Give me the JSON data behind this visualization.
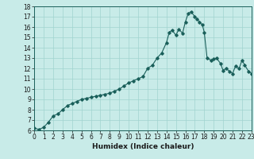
{
  "xlabel": "Humidex (Indice chaleur)",
  "ylabel": "",
  "background_color": "#c8ebe8",
  "line_color": "#1a5f5a",
  "grid_color": "#a0d4cf",
  "xlim": [
    0,
    23
  ],
  "ylim": [
    6,
    18
  ],
  "yticks": [
    6,
    7,
    8,
    9,
    10,
    11,
    12,
    13,
    14,
    15,
    16,
    17,
    18
  ],
  "xticks": [
    0,
    1,
    2,
    3,
    4,
    5,
    6,
    7,
    8,
    9,
    10,
    11,
    12,
    13,
    14,
    15,
    16,
    17,
    18,
    19,
    20,
    21,
    22,
    23
  ],
  "x": [
    0,
    0.5,
    1,
    1.5,
    2,
    2.5,
    3,
    3.5,
    4,
    4.5,
    5,
    5.5,
    6,
    6.5,
    7,
    7.5,
    8,
    8.5,
    9,
    9.5,
    10,
    10.5,
    11,
    11.5,
    12,
    12.5,
    13,
    13.5,
    14,
    14.3,
    14.6,
    15,
    15.3,
    15.7,
    16,
    16.3,
    16.6,
    17,
    17.2,
    17.5,
    17.8,
    18,
    18.3,
    18.7,
    19,
    19.3,
    19.7,
    20,
    20.3,
    20.7,
    21,
    21.3,
    21.7,
    22,
    22.3,
    22.7,
    23
  ],
  "y": [
    6.2,
    6.1,
    6.3,
    6.8,
    7.4,
    7.6,
    8.0,
    8.4,
    8.6,
    8.8,
    9.0,
    9.1,
    9.2,
    9.3,
    9.4,
    9.5,
    9.6,
    9.8,
    10.0,
    10.3,
    10.6,
    10.8,
    11.0,
    11.2,
    12.0,
    12.3,
    13.0,
    13.5,
    14.5,
    15.5,
    15.7,
    15.2,
    15.8,
    15.4,
    16.5,
    17.3,
    17.5,
    17.0,
    16.8,
    16.5,
    16.2,
    15.5,
    13.0,
    12.8,
    12.9,
    13.0,
    12.5,
    11.8,
    12.0,
    11.7,
    11.5,
    12.2,
    12.0,
    12.8,
    12.3,
    11.7,
    11.5
  ],
  "marker": "D",
  "markersize": 1.8,
  "linewidth": 0.8,
  "tick_fontsize": 5.5,
  "xlabel_fontsize": 6.5
}
